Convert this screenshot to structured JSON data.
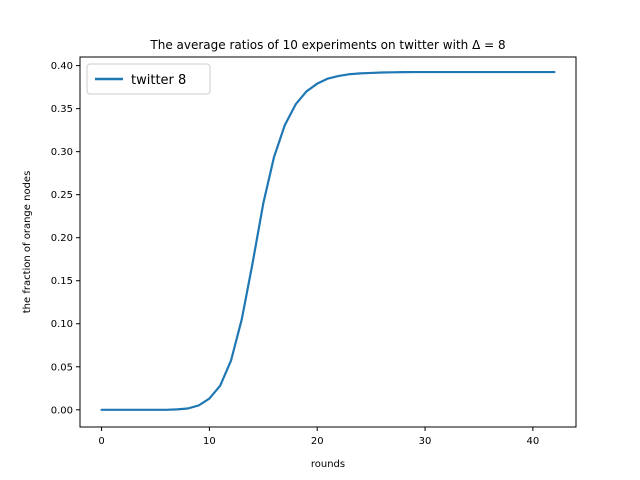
{
  "chart_data": {
    "type": "line",
    "title": "The average ratios of 10 experiments on twitter with Δ = 8",
    "xlabel": "rounds",
    "ylabel": "the fraction of orange nodes",
    "xlim": [
      -2,
      44
    ],
    "ylim": [
      -0.02,
      0.41
    ],
    "xticks": [
      0,
      10,
      20,
      30,
      40
    ],
    "yticks": [
      0.0,
      0.05,
      0.1,
      0.15,
      0.2,
      0.25,
      0.3,
      0.35,
      0.4
    ],
    "grid": false,
    "legend_position": "top-left",
    "series": [
      {
        "name": "twitter 8",
        "color": "#1f77b4",
        "x": [
          0,
          1,
          2,
          3,
          4,
          5,
          6,
          7,
          8,
          9,
          10,
          11,
          12,
          13,
          14,
          15,
          16,
          17,
          18,
          19,
          20,
          21,
          22,
          23,
          24,
          25,
          26,
          27,
          28,
          29,
          30,
          31,
          32,
          33,
          34,
          35,
          36,
          37,
          38,
          39,
          40,
          41,
          42
        ],
        "y": [
          0.0,
          0.0,
          0.0,
          0.0,
          0.0,
          0.0,
          0.0,
          0.0005,
          0.0015,
          0.005,
          0.013,
          0.028,
          0.057,
          0.105,
          0.17,
          0.24,
          0.294,
          0.331,
          0.355,
          0.37,
          0.379,
          0.385,
          0.388,
          0.39,
          0.391,
          0.3915,
          0.392,
          0.3922,
          0.3924,
          0.3925,
          0.3925,
          0.3925,
          0.3925,
          0.3925,
          0.3925,
          0.3925,
          0.3925,
          0.3925,
          0.3925,
          0.3925,
          0.3925,
          0.3925,
          0.3925
        ]
      }
    ]
  }
}
